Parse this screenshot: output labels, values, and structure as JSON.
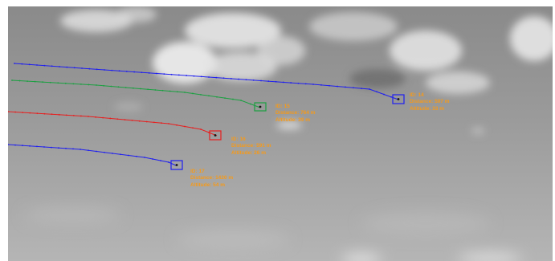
{
  "tracks": [
    {
      "id_text": "ID: 14",
      "distance_text": "Distance: 507 m",
      "altitude_text": "Altitude: 33 m",
      "trail_color": "#1e1ef0",
      "box_color": "#1e1ef0",
      "label_color": "#f59a1a"
    },
    {
      "id_text": "ID: 15",
      "distance_text": "Distance: 764 m",
      "altitude_text": "Altitude: 39 m",
      "trail_color": "#1aa040",
      "box_color": "#1aa040",
      "label_color": "#f59a1a"
    },
    {
      "id_text": "ID: 16",
      "distance_text": "Distance: 591 m",
      "altitude_text": "Altitude: 26 m",
      "trail_color": "#e81e1e",
      "box_color": "#e81e1e",
      "label_color": "#f59a1a"
    },
    {
      "id_text": "ID: 17",
      "distance_text": "Distance: 1420 m",
      "altitude_text": "Altitude: 54 m",
      "trail_color": "#1e1ef0",
      "box_color": "#1e1ef0",
      "label_color": "#f59a1a"
    }
  ]
}
